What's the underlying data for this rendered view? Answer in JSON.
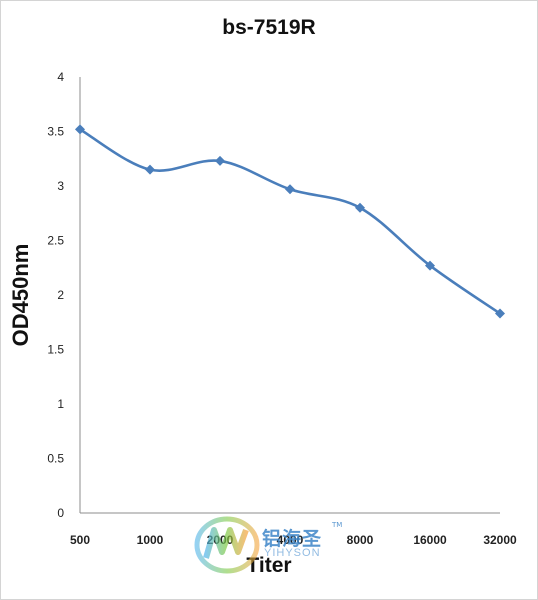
{
  "chart_data": {
    "type": "line",
    "title": "bs-7519R",
    "xlabel": "Titer",
    "ylabel": "OD450nm",
    "categories": [
      "500",
      "1000",
      "2000",
      "4000",
      "8000",
      "16000",
      "32000"
    ],
    "series": [
      {
        "values": [
          3.52,
          3.15,
          3.23,
          2.97,
          2.8,
          2.27,
          1.83
        ]
      }
    ],
    "ylim": [
      0,
      4
    ],
    "yticks": [
      "0",
      "0.5",
      "1",
      "1.5",
      "2",
      "2.5",
      "3",
      "3.5",
      "4"
    ],
    "grid": false,
    "legend": "none",
    "line_color": "#4a7ebb"
  },
  "watermark": {
    "cn": "铝海圣",
    "tm": "TM",
    "en": "YIHYSON"
  }
}
